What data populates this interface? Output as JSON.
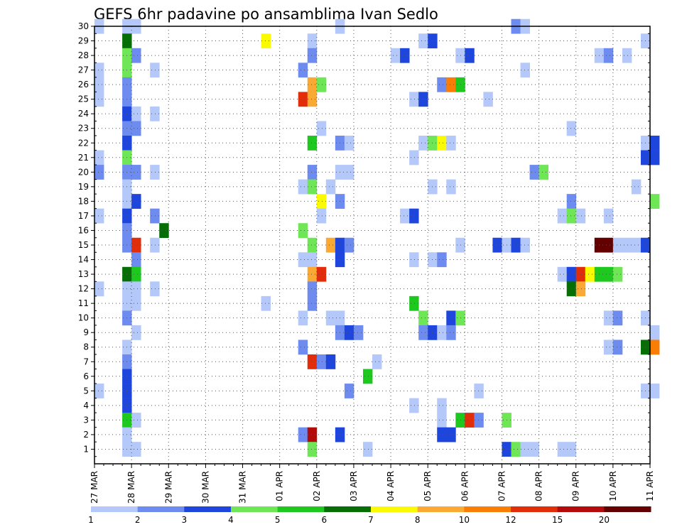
{
  "chart_data": {
    "type": "heatmap",
    "title": "GEFS 6hr padavine po ansamblima Ivan Sedlo",
    "x_tick_labels": [
      "27 MAR",
      "28 MAR",
      "29 MAR",
      "30 MAR",
      "31 MAR",
      "01 APR",
      "02 APR",
      "03 APR",
      "04 APR",
      "05 APR",
      "06 APR",
      "07 APR",
      "08 APR",
      "09 APR",
      "10 APR",
      "11 APR"
    ],
    "y_tick_labels": [
      "1",
      "2",
      "3",
      "4",
      "5",
      "6",
      "7",
      "8",
      "9",
      "10",
      "11",
      "12",
      "13",
      "14",
      "15",
      "16",
      "17",
      "18",
      "19",
      "20",
      "21",
      "22",
      "23",
      "24",
      "25",
      "26",
      "27",
      "28",
      "29",
      "30"
    ],
    "x_range_days": [
      0,
      15
    ],
    "y_range": [
      0,
      30
    ],
    "grid": true,
    "colorbar": {
      "labels": [
        "1",
        "2",
        "3",
        "4",
        "5",
        "6",
        "7",
        "8",
        "10",
        "12",
        "15",
        "20"
      ],
      "colors": [
        "#b4c8fa",
        "#6e8cf0",
        "#1e46dc",
        "#6ee655",
        "#1ec81e",
        "#056e05",
        "#fafa05",
        "#faaa32",
        "#fa7d05",
        "#e12d0a",
        "#b40a0a",
        "#640000"
      ]
    },
    "cells": [
      [
        0.0,
        30,
        1
      ],
      [
        0.75,
        30,
        1
      ],
      [
        1.0,
        30,
        1
      ],
      [
        6.5,
        30,
        1
      ],
      [
        11.25,
        30,
        2
      ],
      [
        11.5,
        30,
        1
      ],
      [
        0.75,
        29,
        6
      ],
      [
        4.5,
        29,
        7
      ],
      [
        5.75,
        29,
        1
      ],
      [
        8.75,
        29,
        1
      ],
      [
        9.0,
        29,
        3
      ],
      [
        14.75,
        29,
        1
      ],
      [
        0.75,
        28,
        4
      ],
      [
        1.0,
        28,
        2
      ],
      [
        5.75,
        28,
        2
      ],
      [
        8.0,
        28,
        1
      ],
      [
        8.25,
        28,
        3
      ],
      [
        9.75,
        28,
        1
      ],
      [
        10.0,
        28,
        3
      ],
      [
        13.5,
        28,
        1
      ],
      [
        13.75,
        28,
        2
      ],
      [
        14.25,
        28,
        1
      ],
      [
        0.0,
        27,
        1
      ],
      [
        0.75,
        27,
        4
      ],
      [
        1.5,
        27,
        1
      ],
      [
        5.5,
        27,
        2
      ],
      [
        11.5,
        27,
        1
      ],
      [
        0.0,
        26,
        1
      ],
      [
        0.75,
        26,
        2
      ],
      [
        5.75,
        26,
        8
      ],
      [
        6.0,
        26,
        4
      ],
      [
        9.25,
        26,
        2
      ],
      [
        9.5,
        26,
        10
      ],
      [
        9.75,
        26,
        5
      ],
      [
        0.0,
        25,
        1
      ],
      [
        0.75,
        25,
        2
      ],
      [
        5.5,
        25,
        12
      ],
      [
        5.75,
        25,
        9
      ],
      [
        8.5,
        25,
        1
      ],
      [
        8.75,
        25,
        3
      ],
      [
        10.5,
        25,
        1
      ],
      [
        0.75,
        24,
        3
      ],
      [
        1.0,
        24,
        1
      ],
      [
        1.5,
        24,
        1
      ],
      [
        0.75,
        23,
        2
      ],
      [
        1.0,
        23,
        2
      ],
      [
        6.0,
        23,
        1
      ],
      [
        12.75,
        23,
        1
      ],
      [
        0.75,
        22,
        3
      ],
      [
        5.75,
        22,
        5
      ],
      [
        6.5,
        22,
        2
      ],
      [
        6.75,
        22,
        1
      ],
      [
        8.75,
        22,
        1
      ],
      [
        9.0,
        22,
        4
      ],
      [
        9.25,
        22,
        7
      ],
      [
        9.5,
        22,
        1
      ],
      [
        14.75,
        22,
        1
      ],
      [
        15.0,
        22,
        3
      ],
      [
        0.0,
        21,
        1
      ],
      [
        0.75,
        21,
        4
      ],
      [
        8.5,
        21,
        1
      ],
      [
        14.75,
        21,
        3
      ],
      [
        15.0,
        21,
        3
      ],
      [
        0.0,
        20,
        2
      ],
      [
        0.75,
        20,
        2
      ],
      [
        1.0,
        20,
        2
      ],
      [
        1.5,
        20,
        1
      ],
      [
        5.75,
        20,
        2
      ],
      [
        6.5,
        20,
        1
      ],
      [
        6.75,
        20,
        1
      ],
      [
        11.75,
        20,
        2
      ],
      [
        12.0,
        20,
        4
      ],
      [
        0.75,
        19,
        1
      ],
      [
        5.5,
        19,
        1
      ],
      [
        5.75,
        19,
        4
      ],
      [
        6.25,
        19,
        1
      ],
      [
        9.0,
        19,
        1
      ],
      [
        9.5,
        19,
        1
      ],
      [
        14.5,
        19,
        1
      ],
      [
        0.75,
        18,
        1
      ],
      [
        1.0,
        18,
        3
      ],
      [
        6.0,
        18,
        7
      ],
      [
        6.5,
        18,
        2
      ],
      [
        12.75,
        18,
        2
      ],
      [
        15.0,
        18,
        4
      ],
      [
        0.0,
        17,
        1
      ],
      [
        0.75,
        17,
        3
      ],
      [
        1.5,
        17,
        2
      ],
      [
        6.0,
        17,
        1
      ],
      [
        8.25,
        17,
        1
      ],
      [
        8.5,
        17,
        3
      ],
      [
        12.5,
        17,
        1
      ],
      [
        12.75,
        17,
        4
      ],
      [
        13.0,
        17,
        1
      ],
      [
        13.75,
        17,
        1
      ],
      [
        0.75,
        16,
        2
      ],
      [
        1.75,
        16,
        6
      ],
      [
        5.5,
        16,
        4
      ],
      [
        0.75,
        15,
        2
      ],
      [
        1.0,
        15,
        12
      ],
      [
        1.5,
        15,
        1
      ],
      [
        5.75,
        15,
        4
      ],
      [
        6.25,
        15,
        9
      ],
      [
        6.5,
        15,
        3
      ],
      [
        6.75,
        15,
        2
      ],
      [
        9.75,
        15,
        1
      ],
      [
        10.75,
        15,
        3
      ],
      [
        11.0,
        15,
        1
      ],
      [
        11.25,
        15,
        3
      ],
      [
        11.5,
        15,
        1
      ],
      [
        13.5,
        15,
        20
      ],
      [
        13.75,
        15,
        20
      ],
      [
        14.0,
        15,
        1
      ],
      [
        14.25,
        15,
        1
      ],
      [
        14.5,
        15,
        1
      ],
      [
        14.75,
        15,
        3
      ],
      [
        1.0,
        14,
        2
      ],
      [
        5.5,
        14,
        1
      ],
      [
        5.75,
        14,
        1
      ],
      [
        6.5,
        14,
        3
      ],
      [
        8.5,
        14,
        1
      ],
      [
        9.0,
        14,
        1
      ],
      [
        9.25,
        14,
        2
      ],
      [
        0.75,
        13,
        6
      ],
      [
        1.0,
        13,
        5
      ],
      [
        5.75,
        13,
        9
      ],
      [
        6.0,
        13,
        12
      ],
      [
        12.5,
        13,
        1
      ],
      [
        12.75,
        13,
        3
      ],
      [
        13.0,
        13,
        12
      ],
      [
        13.25,
        13,
        7
      ],
      [
        13.5,
        13,
        5
      ],
      [
        13.75,
        13,
        5
      ],
      [
        14.0,
        13,
        4
      ],
      [
        0.0,
        12,
        1
      ],
      [
        0.75,
        12,
        1
      ],
      [
        1.0,
        12,
        1
      ],
      [
        1.5,
        12,
        1
      ],
      [
        5.75,
        12,
        2
      ],
      [
        12.75,
        12,
        6
      ],
      [
        13.0,
        12,
        9
      ],
      [
        0.75,
        11,
        1
      ],
      [
        1.0,
        11,
        1
      ],
      [
        4.5,
        11,
        1
      ],
      [
        5.75,
        11,
        2
      ],
      [
        8.5,
        11,
        5
      ],
      [
        0.75,
        10,
        2
      ],
      [
        5.5,
        10,
        1
      ],
      [
        6.25,
        10,
        1
      ],
      [
        6.5,
        10,
        1
      ],
      [
        8.75,
        10,
        4
      ],
      [
        9.5,
        10,
        3
      ],
      [
        9.75,
        10,
        4
      ],
      [
        13.75,
        10,
        1
      ],
      [
        14.0,
        10,
        2
      ],
      [
        14.75,
        10,
        1
      ],
      [
        1.0,
        9,
        1
      ],
      [
        6.5,
        9,
        2
      ],
      [
        6.75,
        9,
        3
      ],
      [
        7.0,
        9,
        2
      ],
      [
        8.75,
        9,
        2
      ],
      [
        9.0,
        9,
        3
      ],
      [
        9.25,
        9,
        1
      ],
      [
        9.5,
        9,
        2
      ],
      [
        15.0,
        9,
        1
      ],
      [
        0.75,
        8,
        1
      ],
      [
        5.5,
        8,
        2
      ],
      [
        13.75,
        8,
        1
      ],
      [
        14.0,
        8,
        2
      ],
      [
        14.75,
        8,
        6
      ],
      [
        15.0,
        8,
        10
      ],
      [
        0.75,
        7,
        2
      ],
      [
        5.75,
        7,
        12
      ],
      [
        6.0,
        7,
        2
      ],
      [
        6.25,
        7,
        3
      ],
      [
        7.5,
        7,
        1
      ],
      [
        0.75,
        6,
        3
      ],
      [
        7.25,
        6,
        5
      ],
      [
        0.0,
        5,
        1
      ],
      [
        0.75,
        5,
        3
      ],
      [
        6.75,
        5,
        2
      ],
      [
        10.25,
        5,
        1
      ],
      [
        14.75,
        5,
        1
      ],
      [
        15.0,
        5,
        1
      ],
      [
        0.75,
        4,
        3
      ],
      [
        8.5,
        4,
        1
      ],
      [
        9.25,
        4,
        1
      ],
      [
        0.75,
        3,
        5
      ],
      [
        1.0,
        3,
        1
      ],
      [
        9.25,
        3,
        1
      ],
      [
        9.75,
        3,
        5
      ],
      [
        10.0,
        3,
        12
      ],
      [
        10.25,
        3,
        2
      ],
      [
        11.0,
        3,
        4
      ],
      [
        0.75,
        2,
        1
      ],
      [
        5.5,
        2,
        2
      ],
      [
        5.75,
        2,
        15
      ],
      [
        6.5,
        2,
        3
      ],
      [
        9.25,
        2,
        3
      ],
      [
        9.5,
        2,
        3
      ],
      [
        0.75,
        1,
        1
      ],
      [
        1.0,
        1,
        1
      ],
      [
        5.75,
        1,
        4
      ],
      [
        7.25,
        1,
        1
      ],
      [
        11.0,
        1,
        3
      ],
      [
        11.25,
        1,
        4
      ],
      [
        11.5,
        1,
        1
      ],
      [
        11.75,
        1,
        1
      ],
      [
        12.5,
        1,
        1
      ],
      [
        12.75,
        1,
        1
      ]
    ]
  }
}
